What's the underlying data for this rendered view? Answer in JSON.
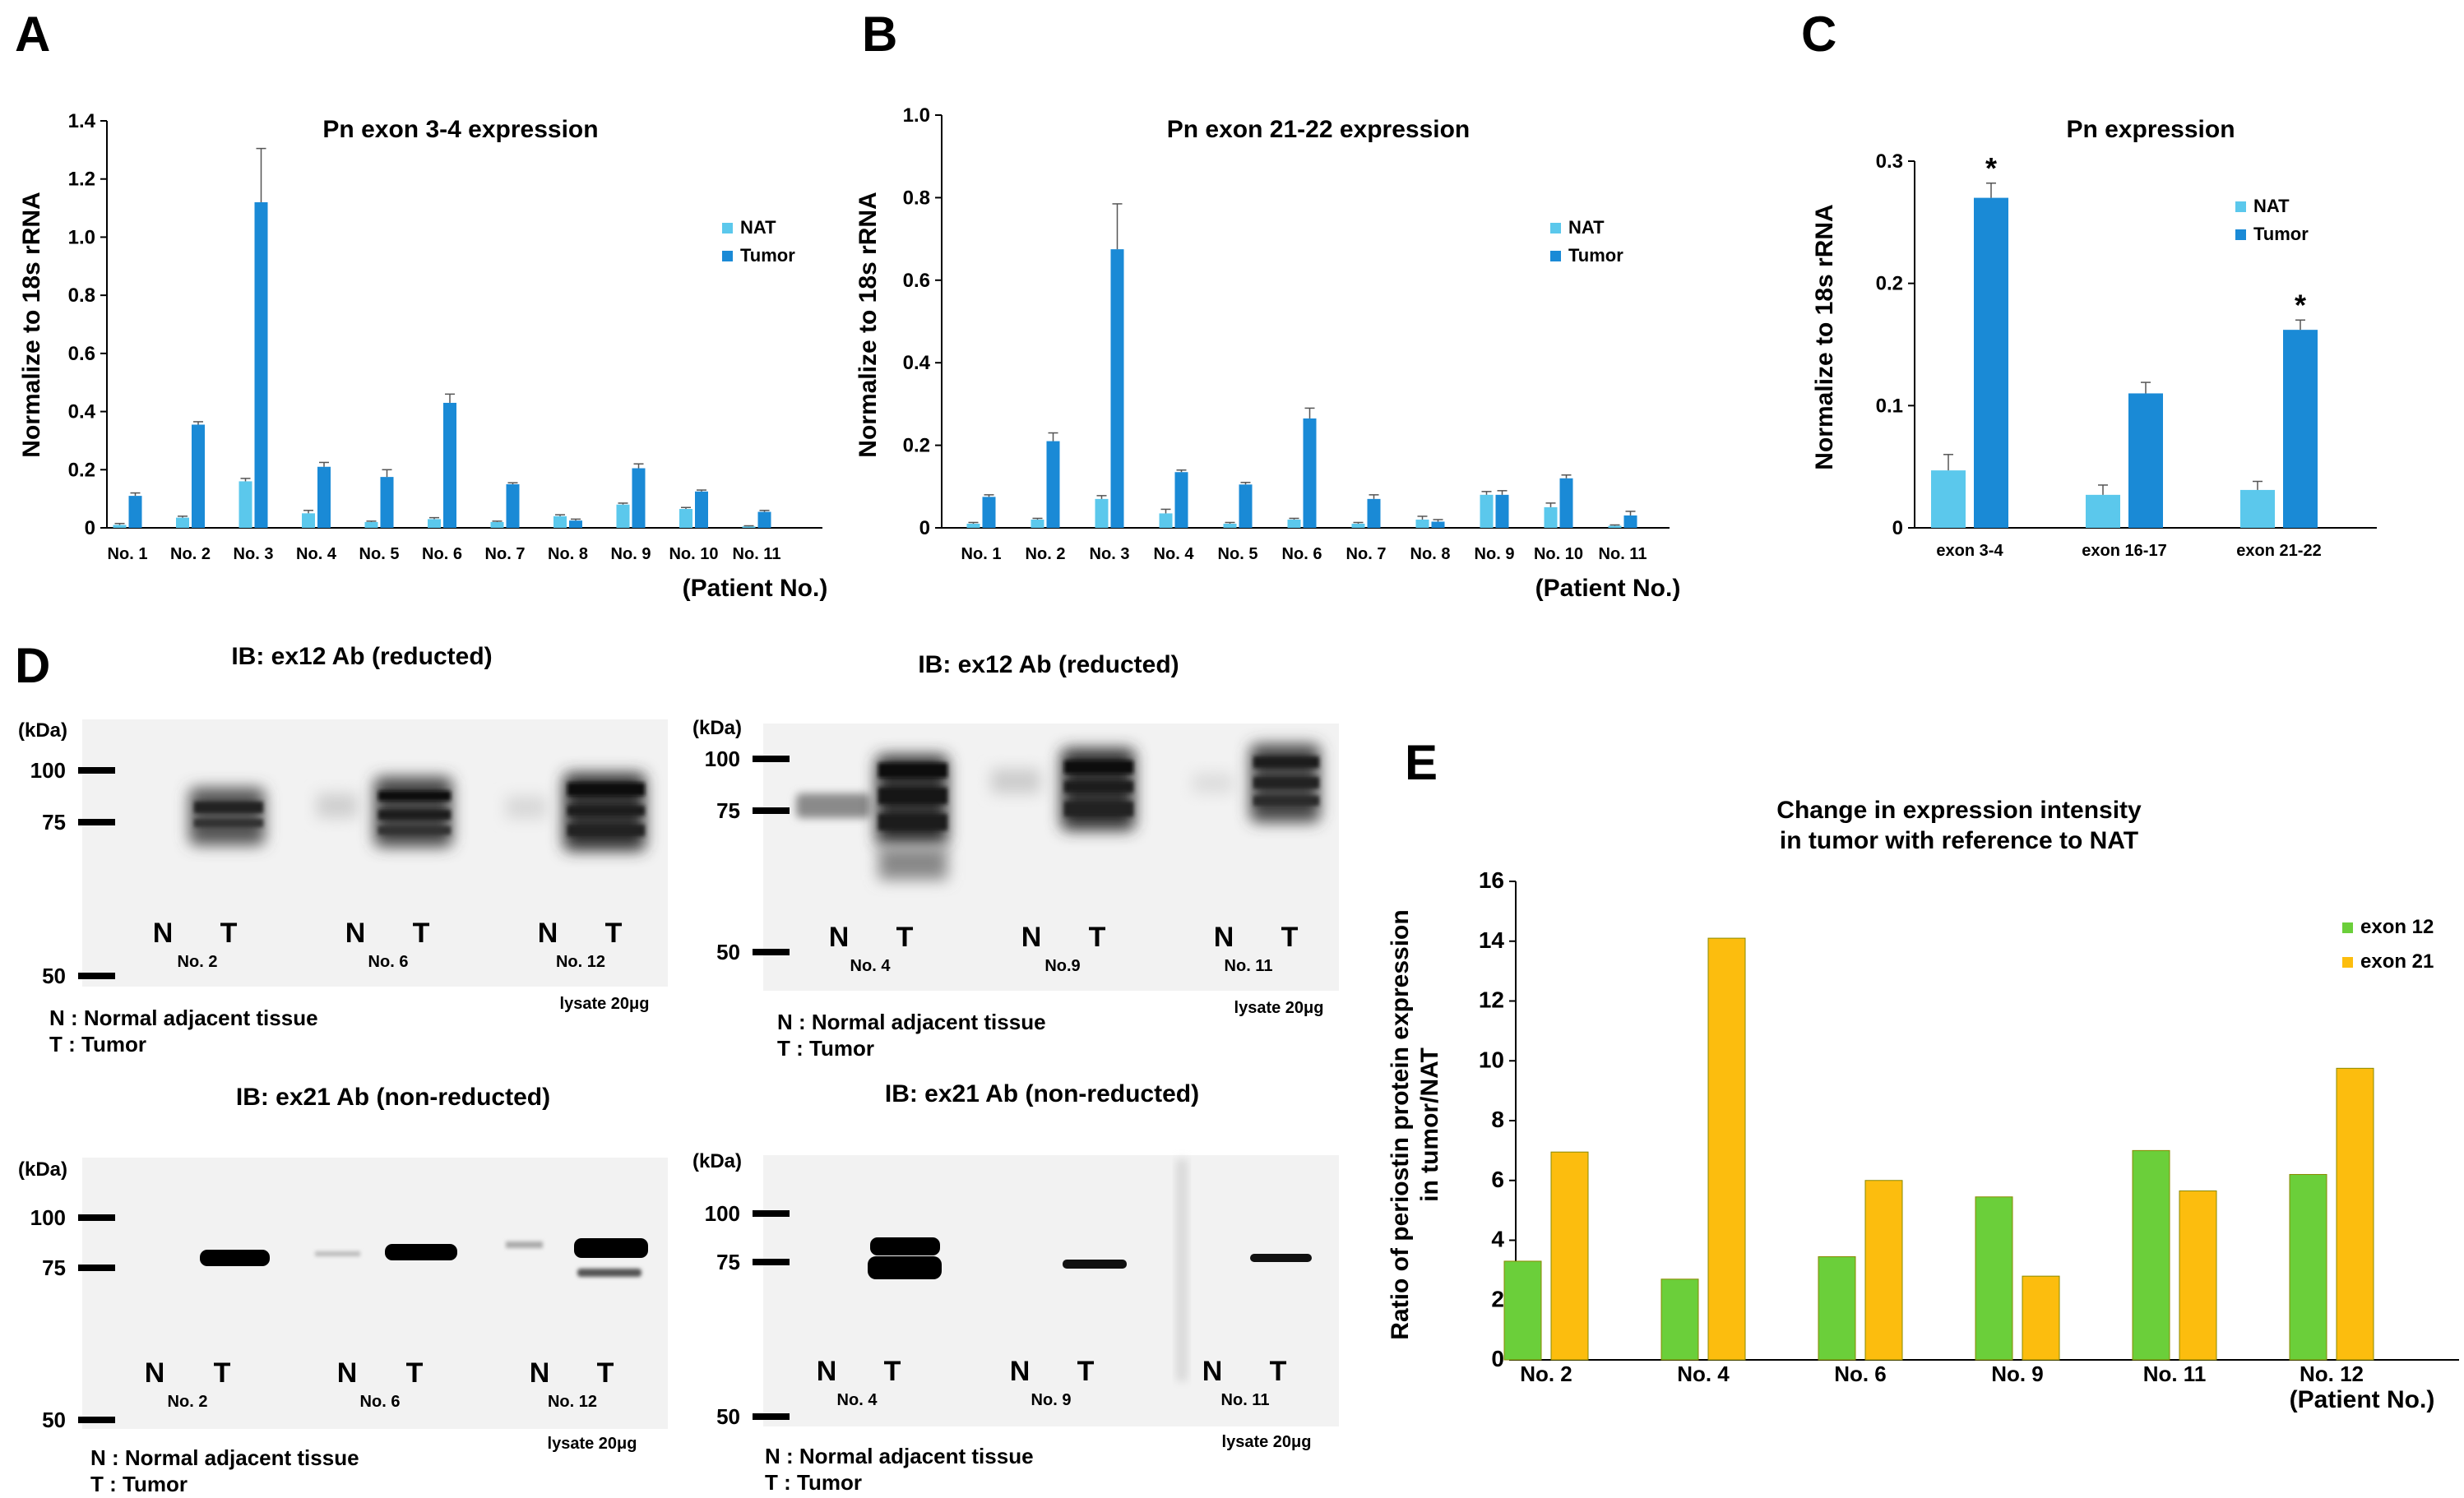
{
  "panel_letters": {
    "a": "A",
    "b": "B",
    "c": "C",
    "d": "D",
    "e": "E"
  },
  "colors": {
    "nat": "#5bc8ec",
    "tumor": "#1a8ad6",
    "ex12": "#6bcf3a",
    "ex21": "#fcbd0e",
    "err": "#555555"
  },
  "chart_data": [
    {
      "id": "A",
      "type": "bar",
      "title": "Pn exon 3-4 expression",
      "ylabel": "Normalize to 18s rRNA",
      "xlabel": "(Patient No.)",
      "ylim": [
        0,
        1.4
      ],
      "yticks": [
        "0",
        "0.2",
        "0.4",
        "0.6",
        "0.8",
        "1.0",
        "1.2",
        "1.4"
      ],
      "categories": [
        "No. 1",
        "No. 2",
        "No. 3",
        "No. 4",
        "No. 5",
        "No. 6",
        "No. 7",
        "No. 8",
        "No. 9",
        "No. 10",
        "No. 11"
      ],
      "series": [
        {
          "name": "NAT",
          "values": [
            0.01,
            0.035,
            0.16,
            0.05,
            0.02,
            0.03,
            0.02,
            0.04,
            0.08,
            0.065,
            0.005
          ],
          "err": [
            0.005,
            0.005,
            0.01,
            0.01,
            0.003,
            0.005,
            0.003,
            0.005,
            0.005,
            0.005,
            0.002
          ]
        },
        {
          "name": "Tumor",
          "values": [
            0.11,
            0.355,
            1.12,
            0.21,
            0.175,
            0.43,
            0.15,
            0.025,
            0.205,
            0.125,
            0.055
          ],
          "err": [
            0.01,
            0.01,
            0.185,
            0.015,
            0.025,
            0.03,
            0.005,
            0.005,
            0.015,
            0.005,
            0.005
          ]
        }
      ],
      "legend": "top-right"
    },
    {
      "id": "B",
      "type": "bar",
      "title": "Pn exon 21-22 expression",
      "ylabel": "Normalize to 18s rRNA",
      "xlabel": "(Patient No.)",
      "ylim": [
        0,
        1.0
      ],
      "yticks": [
        "0",
        "0.2",
        "0.4",
        "0.6",
        "0.8",
        "1.0"
      ],
      "categories": [
        "No. 1",
        "No. 2",
        "No. 3",
        "No. 4",
        "No. 5",
        "No. 6",
        "No. 7",
        "No. 8",
        "No. 9",
        "No. 10",
        "No. 11"
      ],
      "series": [
        {
          "name": "NAT",
          "values": [
            0.01,
            0.02,
            0.07,
            0.035,
            0.01,
            0.02,
            0.01,
            0.02,
            0.08,
            0.05,
            0.005
          ],
          "err": [
            0.003,
            0.003,
            0.008,
            0.01,
            0.003,
            0.003,
            0.003,
            0.008,
            0.008,
            0.01,
            0.002
          ]
        },
        {
          "name": "Tumor",
          "values": [
            0.075,
            0.21,
            0.675,
            0.135,
            0.105,
            0.265,
            0.07,
            0.015,
            0.08,
            0.12,
            0.03
          ],
          "err": [
            0.005,
            0.02,
            0.11,
            0.005,
            0.005,
            0.025,
            0.01,
            0.005,
            0.01,
            0.008,
            0.01
          ]
        }
      ],
      "legend": "top-right"
    },
    {
      "id": "C",
      "type": "bar",
      "title": "Pn expression",
      "ylabel": "Normalize to 18s rRNA",
      "ylim": [
        0,
        0.3
      ],
      "yticks": [
        "0",
        "0.1",
        "0.2",
        "0.3"
      ],
      "categories": [
        "exon 3-4",
        "exon 16-17",
        "exon 21-22"
      ],
      "series": [
        {
          "name": "NAT",
          "values": [
            0.047,
            0.027,
            0.031
          ],
          "err": [
            0.013,
            0.008,
            0.007
          ]
        },
        {
          "name": "Tumor",
          "values": [
            0.27,
            0.11,
            0.162
          ],
          "err": [
            0.012,
            0.009,
            0.008
          ]
        }
      ],
      "annotations": [
        "*",
        "",
        "*"
      ],
      "legend": "top-right"
    },
    {
      "id": "E",
      "type": "bar",
      "title_lines": [
        "Change in expression intensity",
        "in tumor with reference to NAT"
      ],
      "ylabel_lines": [
        "Ratio of periostin protein expression",
        "in tumor/NAT"
      ],
      "xlabel": "(Patient No.)",
      "ylim": [
        0,
        16
      ],
      "yticks": [
        "0",
        "2",
        "4",
        "6",
        "8",
        "10",
        "12",
        "14",
        "16"
      ],
      "categories": [
        "No. 2",
        "No. 4",
        "No. 6",
        "No. 9",
        "No. 11",
        "No. 12"
      ],
      "series": [
        {
          "name": "exon 12",
          "values": [
            3.3,
            2.7,
            3.45,
            5.45,
            7.0,
            6.2
          ]
        },
        {
          "name": "exon 21",
          "values": [
            6.95,
            14.1,
            6.0,
            2.8,
            5.65,
            9.75
          ]
        }
      ],
      "legend": "top-right"
    }
  ],
  "blots": {
    "d1": {
      "title": "IB: ex12 Ab (reducted)",
      "unit": "(kDa)",
      "markers": [
        "100",
        "75",
        "50"
      ],
      "lanes": [
        "N",
        "T",
        "N",
        "T",
        "N",
        "T"
      ],
      "patients": [
        "No. 2",
        "No. 6",
        "No. 12"
      ],
      "lysate": "lysate 20μg"
    },
    "d2": {
      "title": "IB: ex12 Ab (reducted)",
      "unit": "(kDa)",
      "markers": [
        "100",
        "75",
        "50"
      ],
      "lanes": [
        "N",
        "T",
        "N",
        "T",
        "N",
        "T"
      ],
      "patients": [
        "No. 4",
        "No.9",
        "No. 11"
      ],
      "lysate": "lysate 20μg"
    },
    "d3": {
      "title": "IB: ex21 Ab (non-reducted)",
      "unit": "(kDa)",
      "markers": [
        "100",
        "75",
        "50"
      ],
      "lanes": [
        "N",
        "T",
        "N",
        "T",
        "N",
        "T"
      ],
      "patients": [
        "No. 2",
        "No. 6",
        "No. 12"
      ],
      "lysate": "lysate 20μg"
    },
    "d4": {
      "title": "IB: ex21 Ab (non-reducted)",
      "unit": "(kDa)",
      "markers": [
        "100",
        "75",
        "50"
      ],
      "lanes": [
        "N",
        "T",
        "N",
        "T",
        "N",
        "T"
      ],
      "patients": [
        "No. 4",
        "No. 9",
        "No. 11"
      ],
      "lysate": "lysate 20μg"
    }
  },
  "blot_legend": {
    "n": "N : Normal adjacent tissue",
    "t": "T : Tumor"
  }
}
